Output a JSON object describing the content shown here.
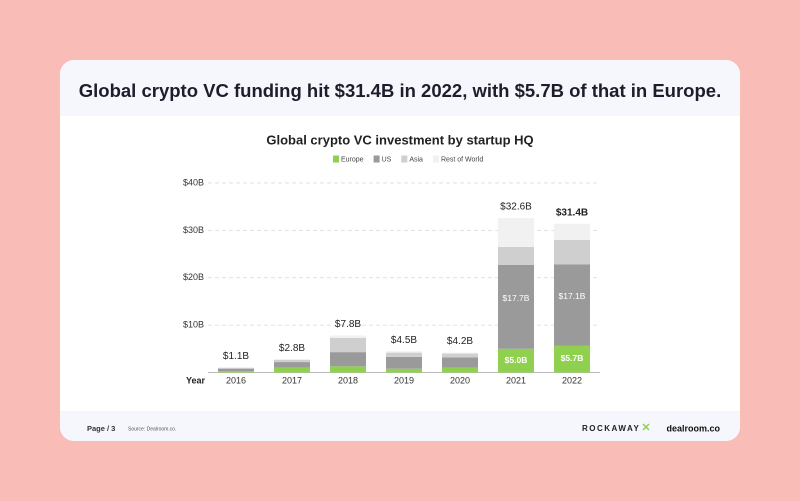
{
  "header_title": "Global crypto VC funding hit $31.4B in 2022, with $5.7B of that in Europe.",
  "footer": {
    "page": "Page / 3",
    "source": "Source: Dealroom.co.",
    "logo_left": "ROCKAWAY",
    "logo_right": "dealroom.co"
  },
  "chart_data": {
    "type": "stacked_bar",
    "title": "Global crypto VC investment by startup HQ",
    "x_label": "Year",
    "categories": [
      "2016",
      "2017",
      "2018",
      "2019",
      "2020",
      "2021",
      "2022"
    ],
    "series": [
      {
        "name": "Europe",
        "color": "#8fd14f",
        "values": [
          0.3,
          1.0,
          1.3,
          0.8,
          1.0,
          5.0,
          5.7
        ],
        "value_labels": [
          null,
          null,
          null,
          null,
          null,
          "$5.0B",
          "$5.7B"
        ]
      },
      {
        "name": "US",
        "color": "#9a9a9a",
        "values": [
          0.5,
          1.2,
          3.0,
          2.5,
          2.2,
          17.7,
          17.1
        ],
        "value_labels": [
          null,
          null,
          null,
          null,
          null,
          "$17.7B",
          "$17.1B"
        ]
      },
      {
        "name": "Asia",
        "color": "#cfcfcf",
        "values": [
          0.2,
          0.5,
          3.0,
          0.9,
          0.8,
          3.8,
          5.2
        ]
      },
      {
        "name": "Rest of World",
        "color": "#f1f1f1",
        "values": [
          0.1,
          0.1,
          0.5,
          0.3,
          0.2,
          6.1,
          3.4
        ]
      }
    ],
    "totals": {
      "values": [
        1.1,
        2.8,
        7.8,
        4.5,
        4.2,
        32.6,
        31.4
      ],
      "value_labels": [
        "$1.1B",
        "$2.8B",
        "$7.8B",
        "$4.5B",
        "$4.2B",
        "$32.6B",
        "$31.4B"
      ]
    },
    "ylim": [
      0,
      40
    ],
    "yticks": [
      {
        "value": 10,
        "label": "$10B"
      },
      {
        "value": 20,
        "label": "$20B"
      },
      {
        "value": 30,
        "label": "$30B"
      },
      {
        "value": 40,
        "label": "$40B"
      }
    ],
    "grid": true
  }
}
